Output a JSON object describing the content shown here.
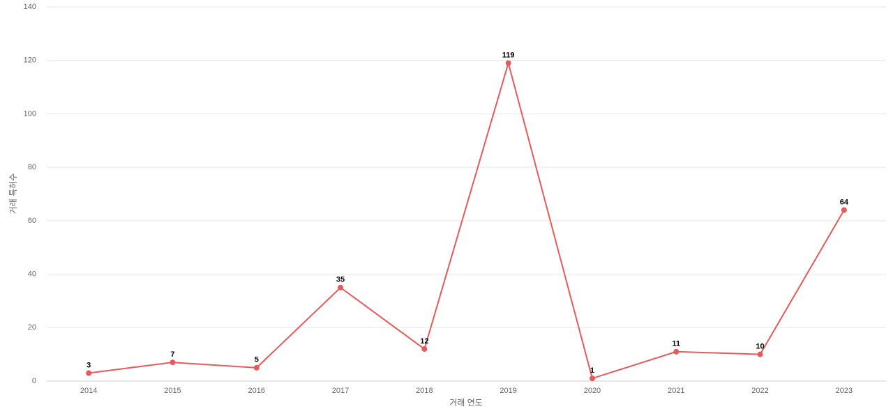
{
  "chart_data": {
    "type": "line",
    "x_label": "거래 연도",
    "y_label": "거래 특허수",
    "categories": [
      "2014",
      "2015",
      "2016",
      "2017",
      "2018",
      "2019",
      "2020",
      "2021",
      "2022",
      "2023"
    ],
    "series": [
      {
        "name": "거래 특허수",
        "color": "#e85a5a",
        "values": [
          3,
          7,
          5,
          35,
          12,
          119,
          1,
          11,
          10,
          64
        ]
      }
    ],
    "ylim": [
      0,
      140
    ],
    "yticks": [
      0,
      20,
      40,
      60,
      80,
      100,
      120,
      140
    ],
    "grid": true,
    "data_labels": true
  }
}
